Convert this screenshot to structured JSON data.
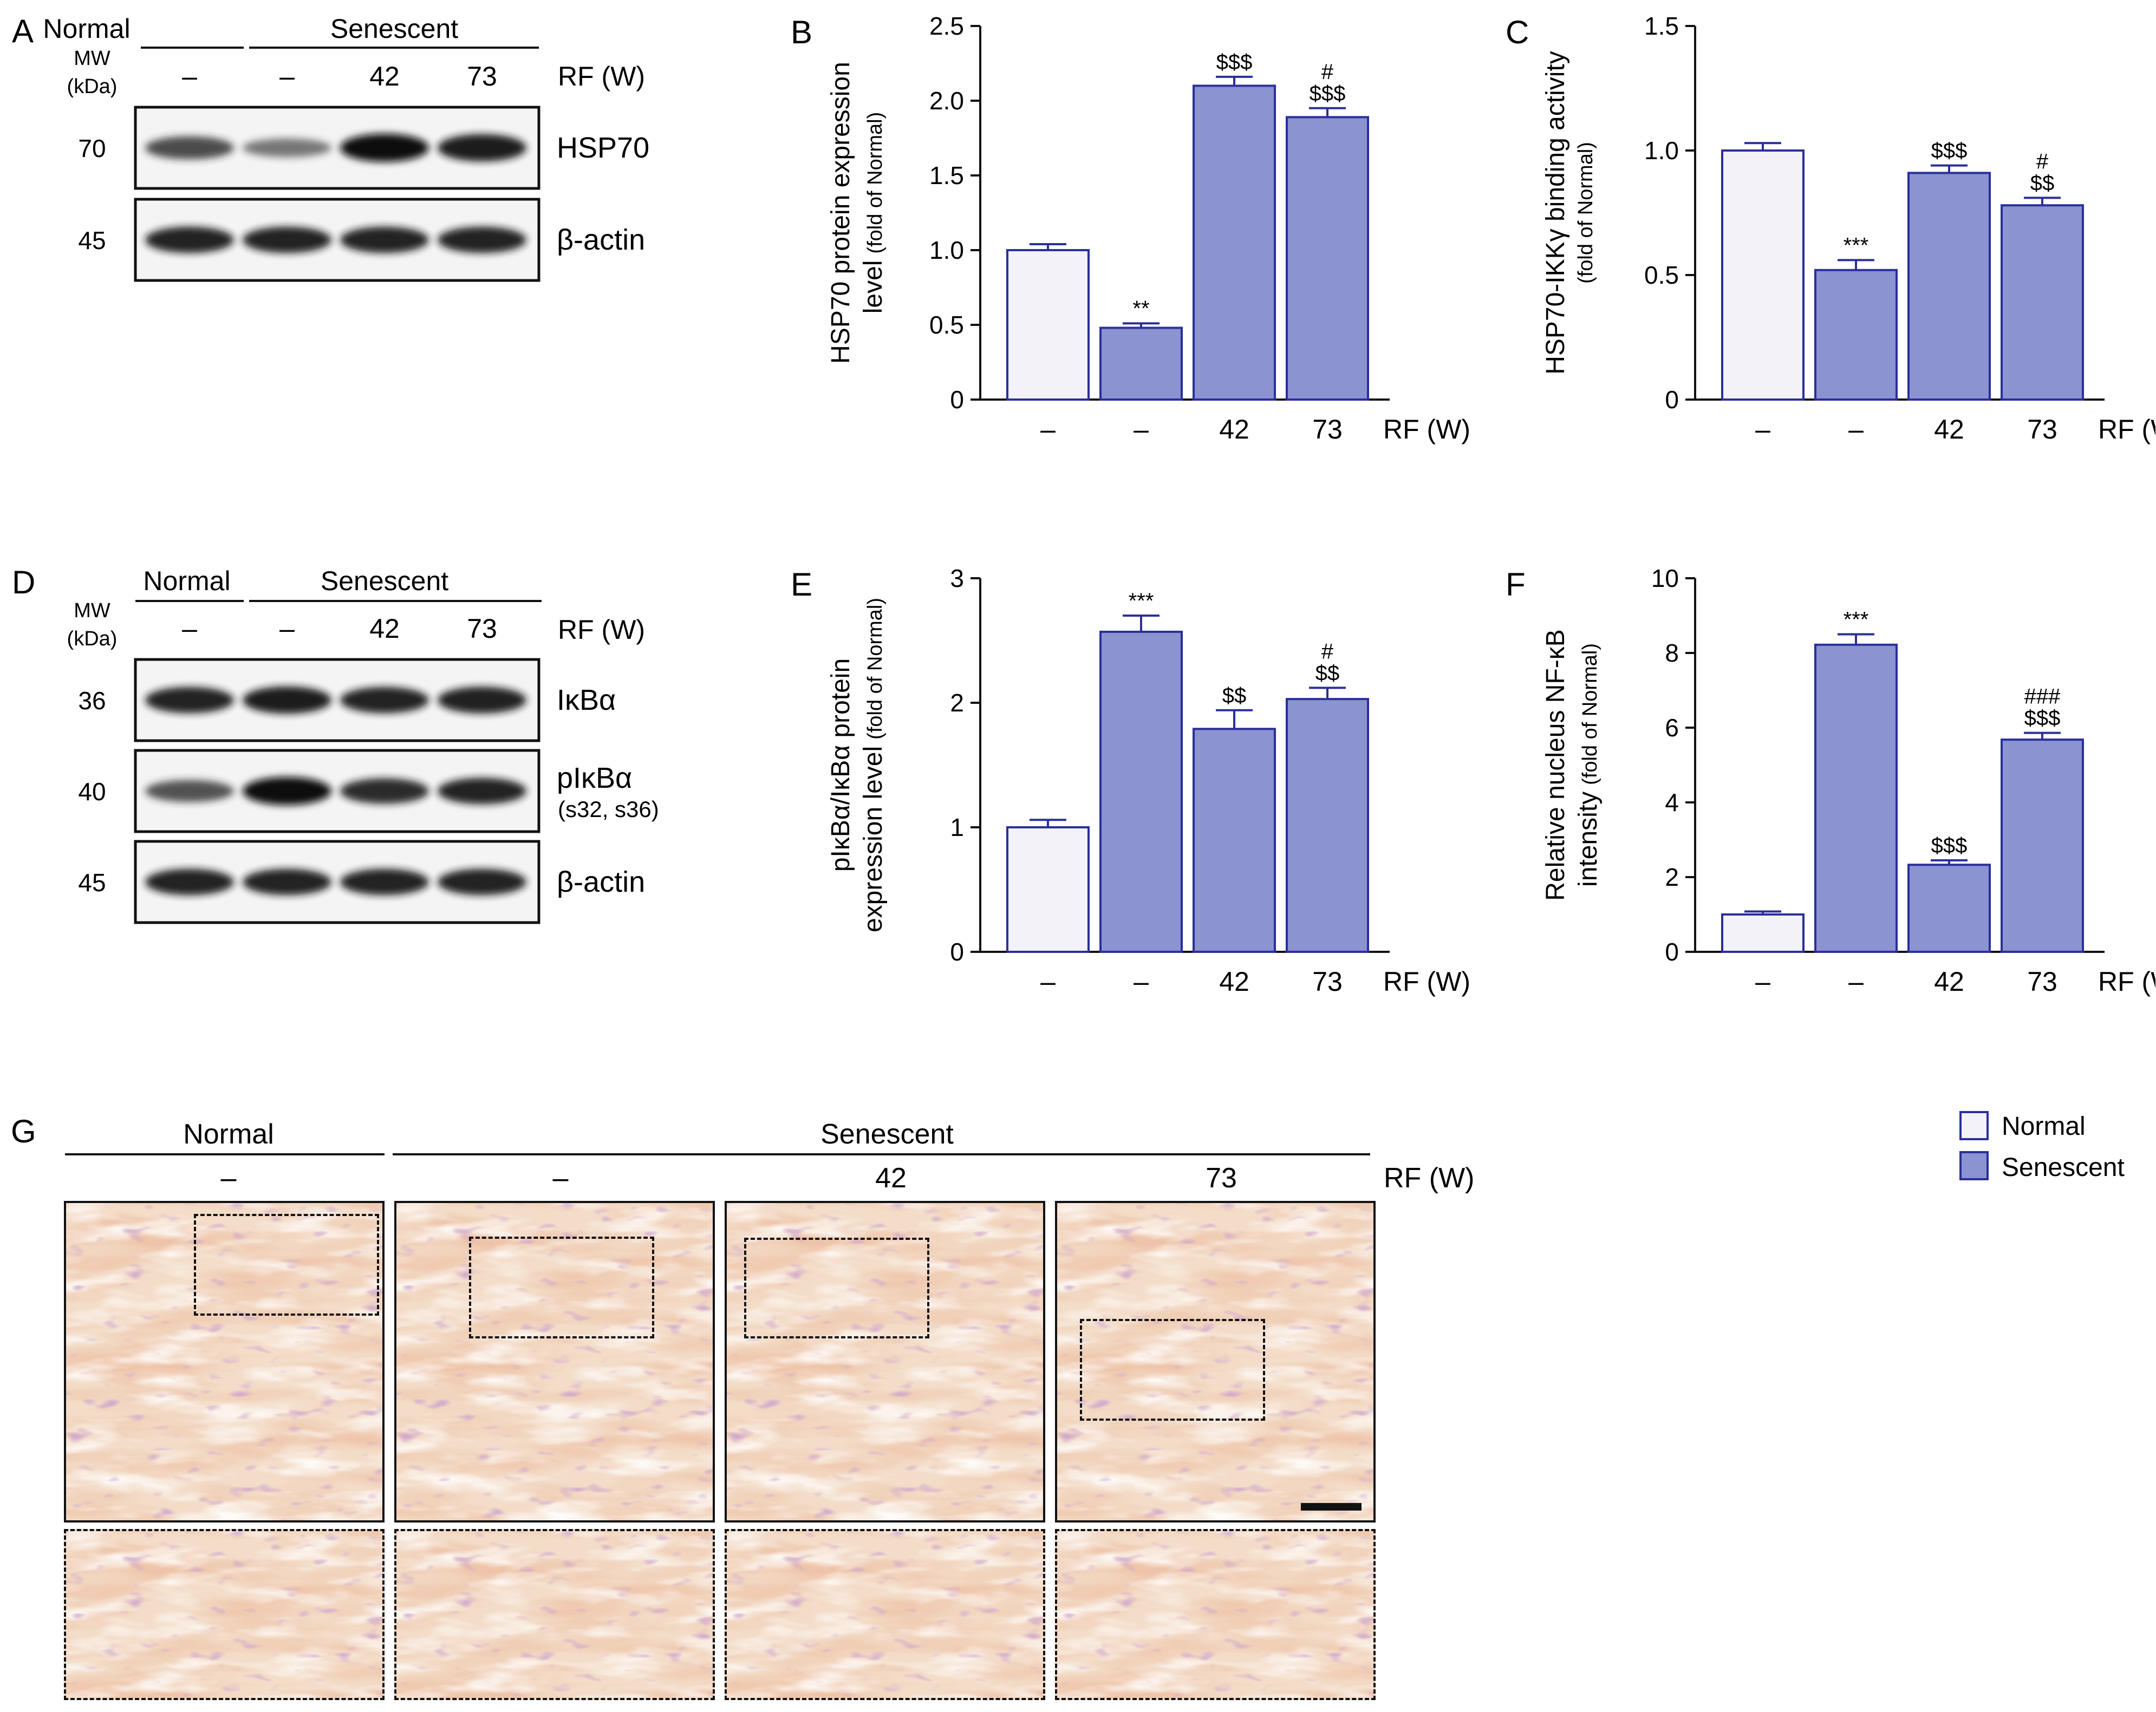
{
  "panels": {
    "A": {
      "letter": "A",
      "mw_label": "MW",
      "kda_label": "(kDa)",
      "group_normal": "Normal",
      "group_senescent": "Senescent",
      "lane_labels": [
        "–",
        "–",
        "42",
        "73"
      ],
      "rf_label": "RF (W)",
      "blots": [
        {
          "mw": "70",
          "protein": "HSP70",
          "band_intensity": [
            0.7,
            0.45,
            1.0,
            0.95
          ]
        },
        {
          "mw": "45",
          "protein": "β-actin",
          "band_intensity": [
            0.9,
            0.9,
            0.9,
            0.9
          ]
        }
      ]
    },
    "D": {
      "letter": "D",
      "mw_label": "MW",
      "kda_label": "(kDa)",
      "group_normal": "Normal",
      "group_senescent": "Senescent",
      "lane_labels": [
        "–",
        "–",
        "42",
        "73"
      ],
      "rf_label": "RF (W)",
      "blots": [
        {
          "mw": "36",
          "protein": "IκBα",
          "protein_sub": "",
          "band_intensity": [
            0.9,
            0.95,
            0.9,
            0.92
          ]
        },
        {
          "mw": "40",
          "protein": "pIκBα",
          "protein_sub": "(s32, s36)",
          "band_intensity": [
            0.65,
            1.0,
            0.85,
            0.9
          ]
        },
        {
          "mw": "45",
          "protein": "β-actin",
          "protein_sub": "",
          "band_intensity": [
            0.9,
            0.9,
            0.9,
            0.9
          ]
        }
      ]
    },
    "G": {
      "letter": "G",
      "group_normal": "Normal",
      "group_senescent": "Senescent",
      "lane_labels": [
        "–",
        "–",
        "42",
        "73"
      ],
      "rf_label": "RF (W)"
    }
  },
  "legend": {
    "normal_label": "Normal",
    "senescent_label": "Senescent"
  },
  "colors": {
    "normal_fill": "#f2f2f8",
    "senescent_fill": "#8b93d0",
    "bar_stroke": "#2a2f9a",
    "axis": "#111111"
  },
  "chart_data": [
    {
      "letter": "B",
      "type": "bar",
      "ylabel": "HSP70 protein expression level (fold of Normal)",
      "ylabel_line1": "HSP70 protein expression",
      "ylabel_line2": "level",
      "ylabel_small": "(fold of Normal)",
      "ylim": [
        0,
        2.5
      ],
      "yticks": [
        "0",
        "0.5",
        "1.0",
        "1.5",
        "2.0",
        "2.5"
      ],
      "ytick_values": [
        0,
        0.5,
        1.0,
        1.5,
        2.0,
        2.5
      ],
      "categories": [
        "–",
        "–",
        "42",
        "73"
      ],
      "xlabel": "RF (W)",
      "groups": [
        "Normal",
        "Senescent",
        "Senescent",
        "Senescent"
      ],
      "values": [
        1.0,
        0.48,
        2.1,
        1.89
      ],
      "errors": [
        0.04,
        0.03,
        0.06,
        0.06
      ],
      "annotations": [
        [],
        [
          "**"
        ],
        [
          "$$$"
        ],
        [
          "#",
          "$$$"
        ]
      ]
    },
    {
      "letter": "C",
      "type": "bar",
      "ylabel": "HSP70-IKKγ binding activity (fold of Normal)",
      "ylabel_line1": "HSP70-IKKγ binding activity",
      "ylabel_line2": "",
      "ylabel_small": "(fold of Normal)",
      "ylim": [
        0,
        1.5
      ],
      "yticks": [
        "0",
        "0.5",
        "1.0",
        "1.5"
      ],
      "ytick_values": [
        0,
        0.5,
        1.0,
        1.5
      ],
      "categories": [
        "–",
        "–",
        "42",
        "73"
      ],
      "xlabel": "RF (W)",
      "groups": [
        "Normal",
        "Senescent",
        "Senescent",
        "Senescent"
      ],
      "values": [
        1.0,
        0.52,
        0.91,
        0.78
      ],
      "errors": [
        0.03,
        0.04,
        0.03,
        0.03
      ],
      "annotations": [
        [],
        [
          "***"
        ],
        [
          "$$$"
        ],
        [
          "#",
          "$$"
        ]
      ]
    },
    {
      "letter": "E",
      "type": "bar",
      "ylabel": "pIκBα/IκBα protein expression level (fold of Normal)",
      "ylabel_line1": "pIκBα/IκBα protein",
      "ylabel_line2": "expression level",
      "ylabel_small": "(fold of Normal)",
      "ylim": [
        0,
        3
      ],
      "yticks": [
        "0",
        "1",
        "2",
        "3"
      ],
      "ytick_values": [
        0,
        1,
        2,
        3
      ],
      "categories": [
        "–",
        "–",
        "42",
        "73"
      ],
      "xlabel": "RF (W)",
      "groups": [
        "Normal",
        "Senescent",
        "Senescent",
        "Senescent"
      ],
      "values": [
        1.0,
        2.57,
        1.79,
        2.03
      ],
      "errors": [
        0.06,
        0.13,
        0.15,
        0.09
      ],
      "annotations": [
        [],
        [
          "***"
        ],
        [
          "$$"
        ],
        [
          "#",
          "$$"
        ]
      ]
    },
    {
      "letter": "F",
      "type": "bar",
      "ylabel": "Relative nucleus NF-κB intensity (fold of Normal)",
      "ylabel_line1": "Relative nucleus NF-κB",
      "ylabel_line2": "intensity",
      "ylabel_small": "(fold of Normal)",
      "ylim": [
        0,
        10
      ],
      "yticks": [
        "0",
        "2",
        "4",
        "6",
        "8",
        "10"
      ],
      "ytick_values": [
        0,
        2,
        4,
        6,
        8,
        10
      ],
      "categories": [
        "–",
        "–",
        "42",
        "73"
      ],
      "xlabel": "RF (W)",
      "groups": [
        "Normal",
        "Senescent",
        "Senescent",
        "Senescent"
      ],
      "values": [
        1.0,
        8.22,
        2.33,
        5.68
      ],
      "errors": [
        0.08,
        0.28,
        0.12,
        0.18
      ],
      "annotations": [
        [],
        [
          "***"
        ],
        [
          "$$$"
        ],
        [
          "###",
          "$$$"
        ]
      ]
    }
  ]
}
